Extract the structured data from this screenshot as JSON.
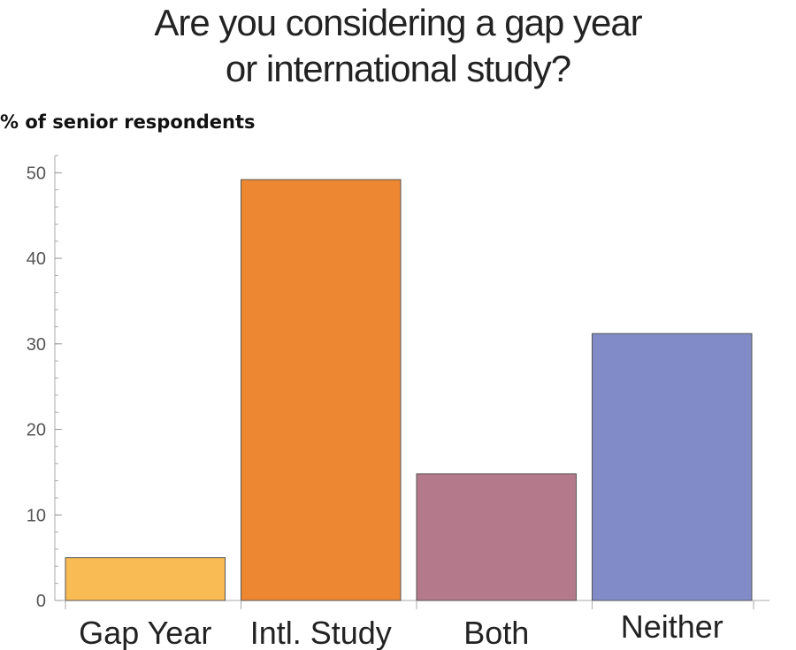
{
  "chart_data": {
    "type": "bar",
    "title_lines": [
      "Are you considering a gap year",
      "or international study?"
    ],
    "ylabel": "% of senior respondents",
    "xlabel": "",
    "categories": [
      "Gap Year",
      "Intl. Study",
      "Both",
      "Neither"
    ],
    "values": [
      5,
      49.2,
      14.8,
      31.2
    ],
    "colors": [
      "#f9bc55",
      "#ee8732",
      "#b47a8b",
      "#808bc8"
    ],
    "ylim": [
      0,
      52
    ],
    "yticks": [
      0,
      10,
      20,
      30,
      40,
      50
    ],
    "grid": false,
    "legend": "none"
  }
}
